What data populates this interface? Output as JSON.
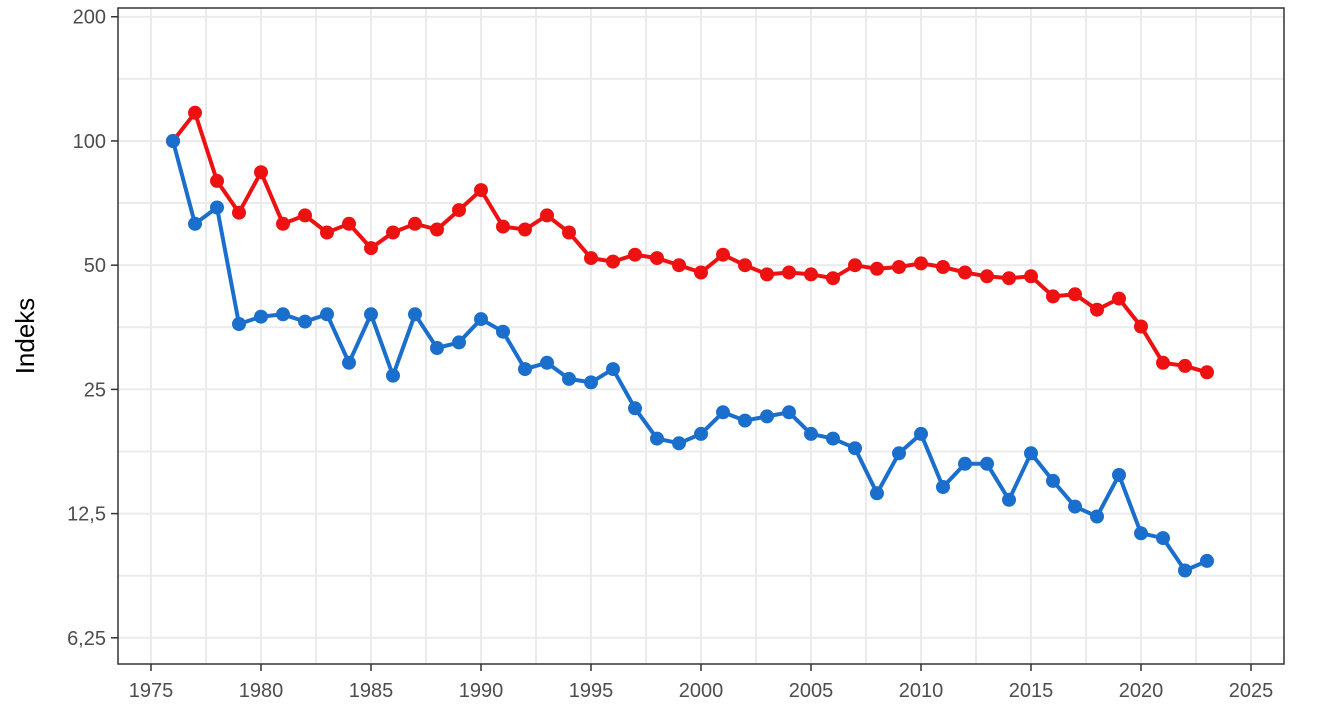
{
  "chart_data": {
    "type": "line",
    "title": "",
    "xlabel": "",
    "ylabel": "Indeks",
    "y_scale": "log2",
    "xlim": [
      1973.5,
      2026.5
    ],
    "ylim": [
      5.4,
      210
    ],
    "x_ticks": [
      1975,
      1980,
      1985,
      1990,
      1995,
      2000,
      2005,
      2010,
      2015,
      2020,
      2025
    ],
    "x_tick_labels": [
      "1975",
      "1980",
      "1985",
      "1990",
      "1995",
      "2000",
      "2005",
      "2010",
      "2015",
      "2020",
      "2025"
    ],
    "y_ticks": [
      6.25,
      12.5,
      25,
      50,
      100,
      200
    ],
    "y_tick_labels": [
      "6,25",
      "12,5",
      "25",
      "50",
      "100",
      "200"
    ],
    "grid": true,
    "legend": "none",
    "x": [
      1976,
      1977,
      1978,
      1979,
      1980,
      1981,
      1982,
      1983,
      1984,
      1985,
      1986,
      1987,
      1988,
      1989,
      1990,
      1991,
      1992,
      1993,
      1994,
      1995,
      1996,
      1997,
      1998,
      1999,
      2000,
      2001,
      2002,
      2003,
      2004,
      2005,
      2006,
      2007,
      2008,
      2009,
      2010,
      2011,
      2012,
      2013,
      2014,
      2015,
      2016,
      2017,
      2018,
      2019,
      2020,
      2021,
      2022,
      2023
    ],
    "series": [
      {
        "color": "#ee1111",
        "values": [
          100,
          117,
          80,
          67,
          84,
          63,
          66,
          60,
          63,
          55,
          60,
          63,
          61,
          68,
          76,
          62,
          61,
          66,
          60,
          52,
          51,
          53,
          52,
          50,
          48,
          53,
          50,
          47.5,
          48,
          47.5,
          46.5,
          50,
          49,
          49.5,
          50.5,
          49.5,
          48,
          47,
          46.5,
          47,
          42,
          42.5,
          39,
          41.5,
          35.5,
          29,
          28.5,
          27.5
        ]
      },
      {
        "color": "#1a6ecc",
        "values": [
          100,
          63,
          69,
          36,
          37.5,
          38,
          36.5,
          38,
          29,
          38,
          27,
          38,
          31.5,
          32.5,
          37,
          34.5,
          28,
          29,
          26.5,
          26,
          28,
          22.5,
          19,
          18.5,
          19.5,
          22,
          21,
          21.5,
          22,
          19.5,
          19,
          18,
          14,
          17.5,
          19.5,
          14.5,
          16.5,
          16.5,
          13.5,
          17.5,
          15,
          13,
          12.3,
          15.5,
          11.2,
          10.9,
          9.1,
          9.6
        ]
      }
    ]
  }
}
